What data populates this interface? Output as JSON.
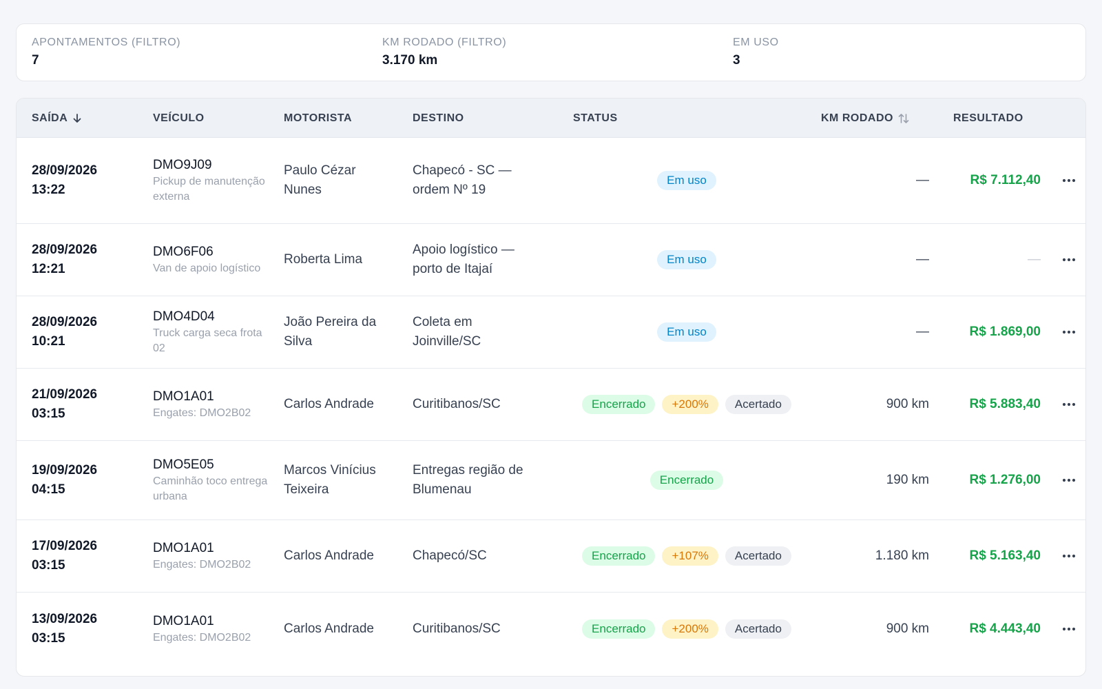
{
  "summary": {
    "records_label": "APONTAMENTOS (FILTRO)",
    "records_value": "7",
    "km_label": "KM RODADO (FILTRO)",
    "km_value": "3.170 km",
    "inuse_label": "EM USO",
    "inuse_value": "3"
  },
  "columns": {
    "saida": "SAÍDA",
    "veiculo": "VEÍCULO",
    "motorista": "MOTORISTA",
    "destino": "DESTINO",
    "status": "STATUS",
    "km": "KM RODADO",
    "resultado": "RESULTADO"
  },
  "colors": {
    "result_green": "#16a34a",
    "inuse_blue": "#0284c7",
    "closed_green": "#16a34a",
    "percent_amber": "#d97706"
  },
  "icons": {
    "sort_desc": "arrow-down-icon",
    "sort_toggle": "sort-arrows-icon",
    "row_menu": "more-horizontal-icon"
  },
  "rows": [
    {
      "date": "28/09/2026",
      "time": "13:22",
      "plate": "DMO9J09",
      "vehicle_desc": "Pickup de manutenção externa",
      "driver": "Paulo Cézar Nunes",
      "destination": "Chapecó - SC — ordem Nº 19",
      "status": "Em uso",
      "percent": "",
      "settled": "",
      "km": "—",
      "result": "R$ 7.112,40"
    },
    {
      "date": "28/09/2026",
      "time": "12:21",
      "plate": "DMO6F06",
      "vehicle_desc": "Van de apoio logístico",
      "driver": "Roberta Lima",
      "destination": "Apoio logístico — porto de Itajaí",
      "status": "Em uso",
      "percent": "",
      "settled": "",
      "km": "—",
      "result": "—"
    },
    {
      "date": "28/09/2026",
      "time": "10:21",
      "plate": "DMO4D04",
      "vehicle_desc": "Truck carga seca frota 02",
      "driver": "João Pereira da Silva",
      "destination": "Coleta em Joinville/SC",
      "status": "Em uso",
      "percent": "",
      "settled": "",
      "km": "—",
      "result": "R$ 1.869,00"
    },
    {
      "date": "21/09/2026",
      "time": "03:15",
      "plate": "DMO1A01",
      "vehicle_desc": "Engates: DMO2B02",
      "driver": "Carlos Andrade",
      "destination": "Curitibanos/SC",
      "status": "Encerrado",
      "percent": "+200%",
      "settled": "Acertado",
      "km": "900 km",
      "result": "R$ 5.883,40"
    },
    {
      "date": "19/09/2026",
      "time": "04:15",
      "plate": "DMO5E05",
      "vehicle_desc": "Caminhão toco entrega urbana",
      "driver": "Marcos Vinícius Teixeira",
      "destination": "Entregas região de Blumenau",
      "status": "Encerrado",
      "percent": "",
      "settled": "",
      "km": "190 km",
      "result": "R$ 1.276,00"
    },
    {
      "date": "17/09/2026",
      "time": "03:15",
      "plate": "DMO1A01",
      "vehicle_desc": "Engates: DMO2B02",
      "driver": "Carlos Andrade",
      "destination": "Chapecó/SC",
      "status": "Encerrado",
      "percent": "+107%",
      "settled": "Acertado",
      "km": "1.180 km",
      "result": "R$ 5.163,40"
    },
    {
      "date": "13/09/2026",
      "time": "03:15",
      "plate": "DMO1A01",
      "vehicle_desc": "Engates: DMO2B02",
      "driver": "Carlos Andrade",
      "destination": "Curitibanos/SC",
      "status": "Encerrado",
      "percent": "+200%",
      "settled": "Acertado",
      "km": "900 km",
      "result": "R$ 4.443,40"
    }
  ]
}
